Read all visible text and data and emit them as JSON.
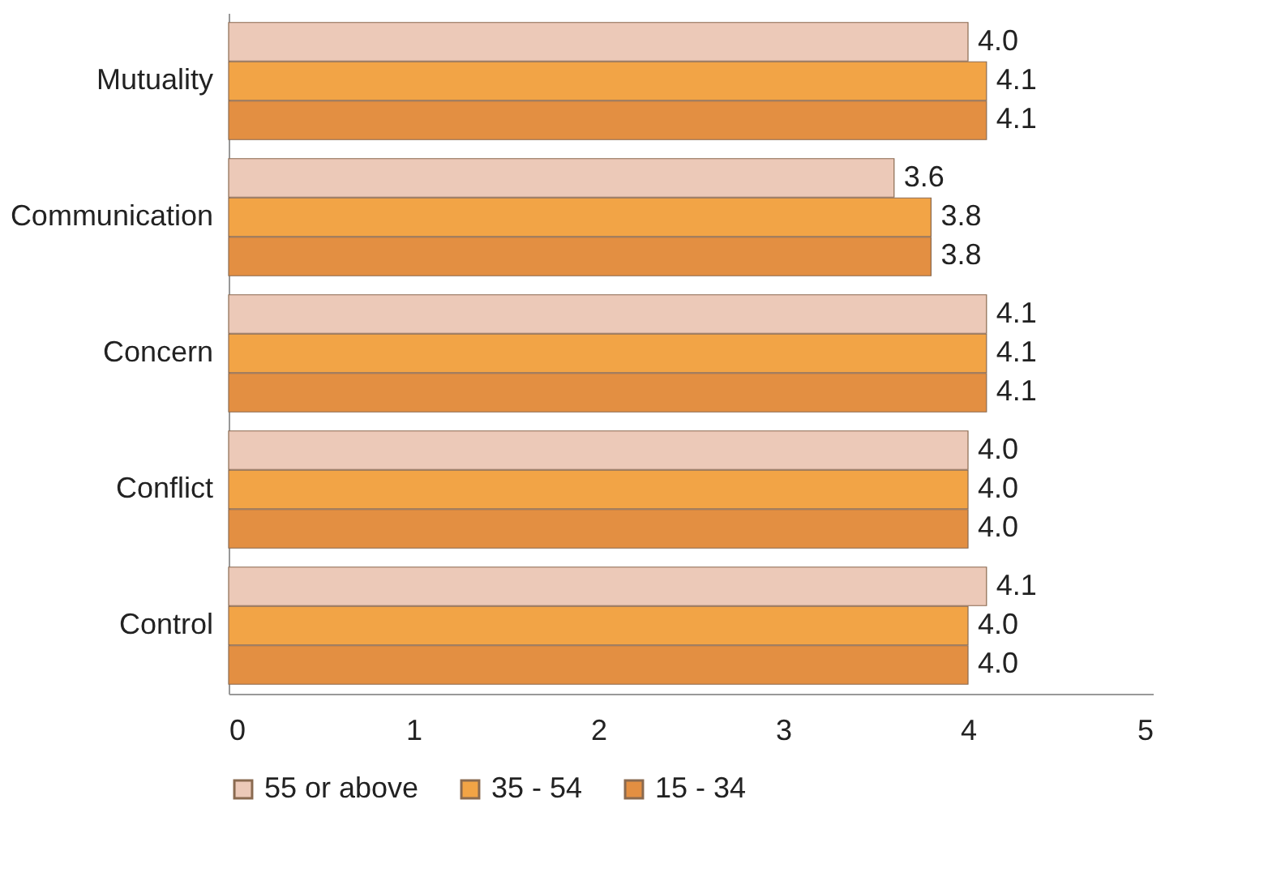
{
  "chart_data": {
    "type": "bar",
    "orientation": "horizontal",
    "categories": [
      "Mutuality",
      "Communication",
      "Concern",
      "Conflict",
      "Control"
    ],
    "series": [
      {
        "name": "55 or above",
        "color": "#ecc9b8",
        "values": [
          4.0,
          3.6,
          4.1,
          4.0,
          4.1
        ],
        "value_labels": [
          "4.0",
          "3.6",
          "4.1",
          "4.0",
          "4.1"
        ]
      },
      {
        "name": "35 - 54",
        "color": "#f2a446",
        "values": [
          4.1,
          3.8,
          4.1,
          4.0,
          4.0
        ],
        "value_labels": [
          "4.1",
          "3.8",
          "4.1",
          "4.0",
          "4.0"
        ]
      },
      {
        "name": "15  - 34",
        "color": "#e38f42",
        "values": [
          4.1,
          3.8,
          4.1,
          4.0,
          4.0
        ],
        "value_labels": [
          "4.1",
          "3.8",
          "4.1",
          "4.0",
          "4.0"
        ]
      }
    ],
    "xlim": [
      0,
      5
    ],
    "xticks": [
      0,
      1,
      2,
      3,
      4,
      5
    ],
    "legend": "bottom"
  }
}
